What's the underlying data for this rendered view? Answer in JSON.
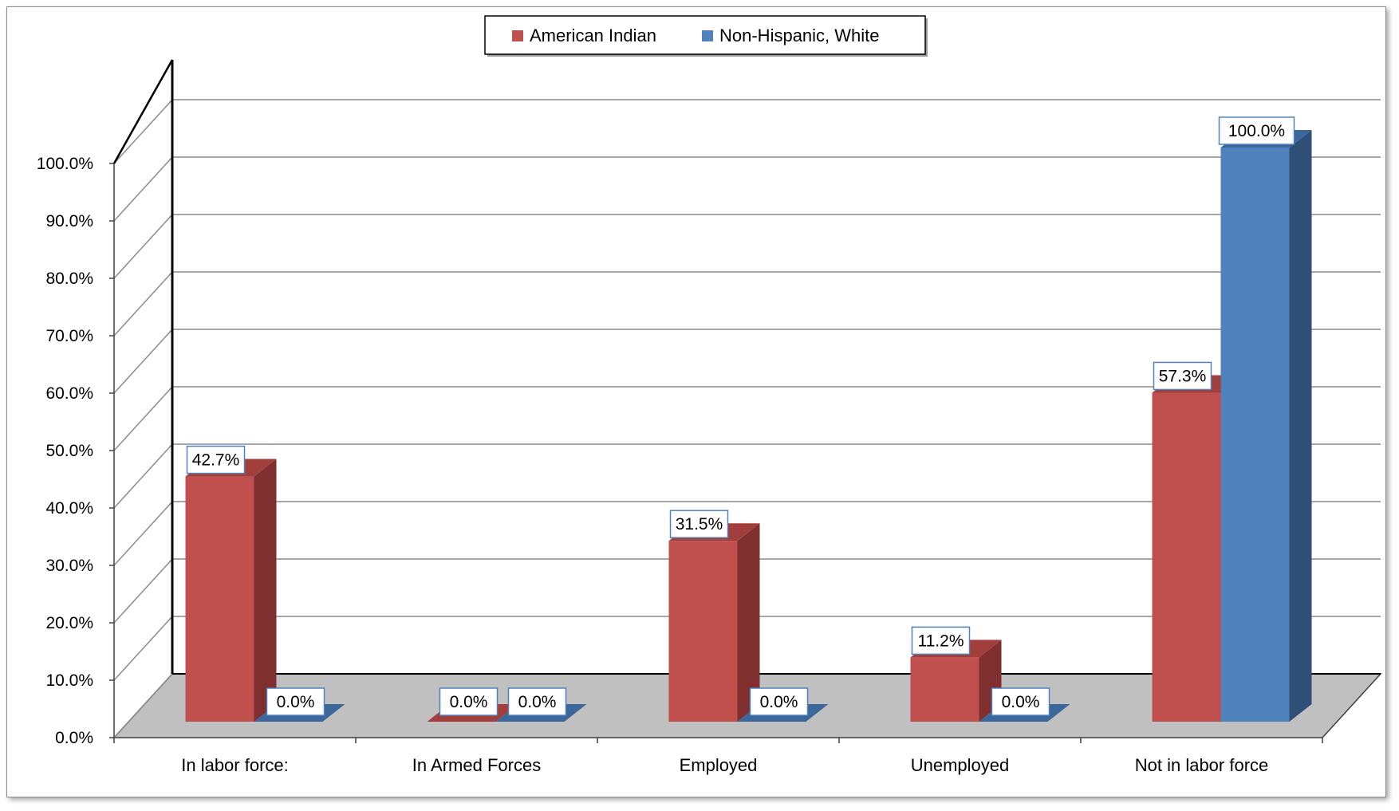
{
  "chart_data": {
    "type": "bar",
    "categories": [
      "In labor force:",
      "In Armed Forces",
      "Employed",
      "Unemployed",
      "Not in labor force"
    ],
    "series": [
      {
        "name": "American Indian",
        "values": [
          42.7,
          0.0,
          31.5,
          11.2,
          57.3
        ],
        "labels": [
          "42.7%",
          "0.0%",
          "31.5%",
          "11.2%",
          "57.3%"
        ],
        "color": "#c0504d",
        "side_color": "#7f2f2e",
        "top_color": "#a23f3c"
      },
      {
        "name": "Non-Hispanic, White",
        "values": [
          0.0,
          0.0,
          0.0,
          0.0,
          100.0
        ],
        "labels": [
          "0.0%",
          "0.0%",
          "0.0%",
          "0.0%",
          "100.0%"
        ],
        "color": "#4f81bd",
        "side_color": "#2f4f77",
        "top_color": "#3c679b"
      }
    ],
    "ylim": [
      0,
      100
    ],
    "yticks": [
      0,
      10,
      20,
      30,
      40,
      50,
      60,
      70,
      80,
      90,
      100
    ],
    "ytick_labels": [
      "0.0%",
      "10.0%",
      "20.0%",
      "30.0%",
      "40.0%",
      "50.0%",
      "60.0%",
      "70.0%",
      "80.0%",
      "90.0%",
      "100.0%"
    ],
    "title": "",
    "xlabel": "",
    "ylabel": "",
    "grid": true,
    "legend_position": "top-center",
    "style": "3d-clustered-column"
  }
}
